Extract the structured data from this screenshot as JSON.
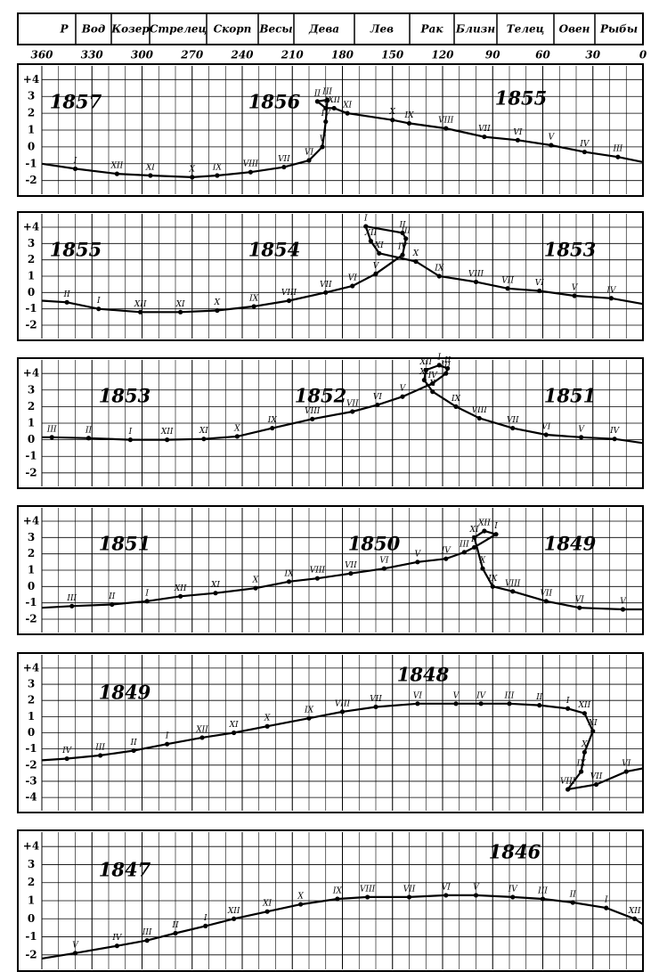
{
  "header": {
    "signs": [
      "P",
      "Вод",
      "Козер",
      "Стрелец",
      "Скорп",
      "Весы",
      "Дева",
      "Лев",
      "Рак",
      "Близн",
      "Телец",
      "Овен",
      "Рыбы"
    ],
    "longitude_ticks": [
      360,
      330,
      300,
      270,
      240,
      210,
      180,
      150,
      120,
      90,
      60,
      30,
      0
    ]
  },
  "chart_data": [
    {
      "type": "line",
      "years": [
        "1857",
        "1856",
        "1855"
      ],
      "x": [
        360,
        340,
        315,
        295,
        270,
        255,
        235,
        215,
        200,
        192,
        190,
        189,
        195,
        190,
        185,
        177,
        150,
        140,
        118,
        95,
        75,
        55,
        35,
        15,
        0
      ],
      "values": [
        -1.0,
        -1.3,
        -1.6,
        -1.7,
        -1.8,
        -1.7,
        -1.5,
        -1.2,
        -0.8,
        0,
        1.5,
        2.8,
        2.7,
        2.3,
        2.3,
        2.0,
        1.6,
        1.4,
        1.1,
        0.6,
        0.4,
        0.1,
        -0.3,
        -0.6,
        -0.9
      ],
      "labels": [
        null,
        "I",
        "XII",
        "XI",
        "X",
        "IX",
        "VIII",
        "VII",
        "VI",
        "V",
        "IV",
        "III",
        "II",
        "I",
        "XII",
        "XI",
        "X",
        "IX",
        "VIII",
        "VII",
        "VI",
        "V",
        "IV",
        "III",
        null
      ],
      "xlim": [
        360,
        0
      ],
      "ylim": [
        -2.6,
        4.6
      ],
      "yticks": [
        {
          "value": 4,
          "label": "+4"
        },
        3,
        2,
        1,
        0,
        -1,
        -2
      ],
      "color": "#000000"
    },
    {
      "type": "line",
      "years": [
        "1855",
        "1854",
        "1853"
      ],
      "x": [
        360,
        345,
        326,
        301,
        277,
        255,
        233,
        212,
        190,
        174,
        160,
        144,
        142,
        144,
        166,
        163,
        158,
        136,
        122,
        100,
        81,
        62,
        41,
        19,
        0
      ],
      "values": [
        -0.5,
        -0.6,
        -1,
        -1.2,
        -1.2,
        -1.1,
        -0.85,
        -0.5,
        0,
        0.4,
        1.15,
        2.3,
        3.3,
        3.65,
        4.05,
        3.15,
        2.4,
        1.9,
        1.0,
        0.65,
        0.25,
        0.1,
        -0.2,
        -0.35,
        -0.7
      ],
      "labels": [
        null,
        "II",
        "I",
        "XII",
        "XI",
        "X",
        "IX",
        "VIII",
        "VII",
        "VI",
        "V",
        "IV",
        "III",
        "II",
        "I",
        "XII",
        "XI",
        "X",
        "IX",
        "VIII",
        "VII",
        "VI",
        "V",
        "IV",
        null
      ],
      "xlim": [
        360,
        0
      ],
      "ylim": [
        -2.6,
        4.6
      ],
      "yticks": [
        {
          "value": 4,
          "label": "+4"
        },
        3,
        2,
        1,
        0,
        -1,
        -2
      ],
      "color": "#000000"
    },
    {
      "type": "line",
      "years": [
        "1853",
        "1852",
        "1851"
      ],
      "x": [
        360,
        354,
        332,
        307,
        285,
        263,
        243,
        222,
        198,
        174,
        159,
        144,
        126,
        118,
        117,
        122,
        130,
        131,
        126,
        112,
        98,
        78,
        58,
        37,
        17,
        0
      ],
      "values": [
        0.15,
        0.15,
        0.1,
        0,
        0,
        0.05,
        0.2,
        0.7,
        1.25,
        1.7,
        2.1,
        2.6,
        3.4,
        4.0,
        4.3,
        4.5,
        4.2,
        3.6,
        2.9,
        2.0,
        1.3,
        0.7,
        0.3,
        0.15,
        0.05,
        -0.2
      ],
      "labels": [
        null,
        "III",
        "II",
        "I",
        "XII",
        "XI",
        "X",
        "IX",
        "VIII",
        "VII",
        "VI",
        "V",
        "IV",
        "III",
        "II",
        "I",
        "XII",
        "XI",
        "X",
        "IX",
        "VIII",
        "VII",
        "VI",
        "V",
        "IV",
        null
      ],
      "xlim": [
        360,
        0
      ],
      "ylim": [
        -2.6,
        4.6
      ],
      "yticks": [
        {
          "value": 4,
          "label": "+4"
        },
        3,
        2,
        1,
        0,
        -1,
        -2
      ],
      "color": "#000000"
    },
    {
      "type": "line",
      "years": [
        "1851",
        "1850",
        "1849"
      ],
      "x": [
        360,
        342,
        318,
        297,
        277,
        256,
        232,
        212,
        195,
        175,
        155,
        135,
        118,
        107,
        101,
        88,
        95,
        101,
        96,
        90,
        78,
        58,
        38,
        12,
        0
      ],
      "values": [
        -1.3,
        -1.2,
        -1.1,
        -0.9,
        -0.6,
        -0.4,
        -0.1,
        0.3,
        0.5,
        0.8,
        1.1,
        1.5,
        1.7,
        2.1,
        2.4,
        3.2,
        3.4,
        3.0,
        1.1,
        0,
        -0.3,
        -0.9,
        -1.3,
        -1.4,
        -1.4
      ],
      "labels": [
        null,
        "III",
        "II",
        "I",
        "XII",
        "XI",
        "X",
        "IX",
        "VIII",
        "VII",
        "VI",
        "V",
        "IV",
        "III",
        "II",
        "I",
        "XII",
        "XI",
        "X",
        "IX",
        "VIII",
        "VII",
        "VI",
        "V",
        null
      ],
      "xlim": [
        360,
        0
      ],
      "ylim": [
        -2.6,
        4.6
      ],
      "yticks": [
        {
          "value": 4,
          "label": "+4"
        },
        3,
        2,
        1,
        0,
        -1,
        -2
      ],
      "color": "#000000"
    },
    {
      "type": "line",
      "years": [
        "1849",
        "1848"
      ],
      "x": [
        360,
        345,
        325,
        305,
        285,
        264,
        245,
        225,
        200,
        180,
        160,
        135,
        112,
        97,
        80,
        62,
        45,
        35,
        30,
        35,
        37,
        45,
        28,
        10,
        0
      ],
      "values": [
        -1.7,
        -1.6,
        -1.4,
        -1.1,
        -0.7,
        -0.3,
        0,
        0.4,
        0.9,
        1.3,
        1.6,
        1.8,
        1.8,
        1.8,
        1.8,
        1.7,
        1.5,
        1.2,
        0.1,
        -1.2,
        -2.4,
        -3.5,
        -3.2,
        -2.4,
        -2.2
      ],
      "labels": [
        null,
        "IV",
        "III",
        "II",
        "I",
        "XII",
        "XI",
        "X",
        "IX",
        "VIII",
        "VII",
        "VI",
        "V",
        "IV",
        "III",
        "II",
        "I",
        "XII",
        "XI",
        "X",
        "IX",
        "VIII",
        "VII",
        "VI",
        null
      ],
      "xlim": [
        360,
        0
      ],
      "ylim": [
        -4.6,
        4.6
      ],
      "yticks": [
        {
          "value": 4,
          "label": "+4"
        },
        3,
        2,
        1,
        0,
        -1,
        -2,
        -3,
        -4
      ],
      "color": "#000000"
    },
    {
      "type": "line",
      "years": [
        "1847",
        "1846"
      ],
      "x": [
        360,
        340,
        315,
        297,
        280,
        262,
        245,
        225,
        205,
        183,
        165,
        140,
        118,
        100,
        78,
        60,
        42,
        22,
        5,
        0
      ],
      "values": [
        -2.2,
        -1.9,
        -1.5,
        -1.2,
        -0.8,
        -0.4,
        0,
        0.4,
        0.8,
        1.1,
        1.2,
        1.2,
        1.3,
        1.3,
        1.2,
        1.1,
        0.9,
        0.6,
        0,
        -0.3
      ],
      "labels": [
        null,
        "V",
        "IV",
        "III",
        "II",
        "I",
        "XII",
        "XI",
        "X",
        "IX",
        "VIII",
        "VII",
        "VI",
        "V",
        "IV",
        "III",
        "II",
        "I",
        "XII",
        null
      ],
      "xlim": [
        360,
        0
      ],
      "ylim": [
        -2.6,
        4.6
      ],
      "yticks": [
        {
          "value": 4,
          "label": "+4"
        },
        3,
        2,
        1,
        0,
        -1,
        -2
      ],
      "color": "#000000"
    }
  ]
}
